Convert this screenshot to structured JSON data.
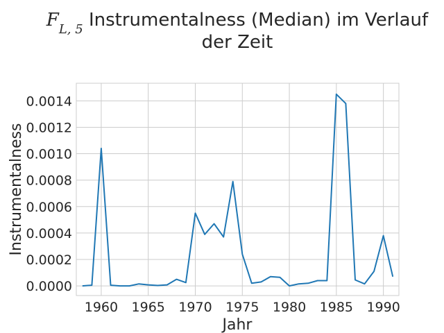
{
  "chart_data": {
    "type": "line",
    "title_symbol": "F",
    "title_subscript": "L, 5",
    "title_rest": " Instrumentalness (Median) im Verlauf",
    "title_line2": "der Zeit",
    "xlabel": "Jahr",
    "ylabel": "Instrumentalness",
    "xlim": [
      1957.35,
      1991.65
    ],
    "ylim": [
      -7.3e-05,
      0.001533
    ],
    "xticks": [
      1960,
      1965,
      1970,
      1975,
      1980,
      1985,
      1990
    ],
    "yticks": [
      0.0,
      0.0002,
      0.0004,
      0.0006,
      0.0008,
      0.001,
      0.0012,
      0.0014
    ],
    "ytick_labels": [
      "0.0000",
      "0.0002",
      "0.0004",
      "0.0006",
      "0.0008",
      "0.0010",
      "0.0012",
      "0.0014"
    ],
    "grid": true,
    "line_color": "#1f77b4",
    "x": [
      1958,
      1959,
      1960,
      1961,
      1962,
      1963,
      1964,
      1965,
      1966,
      1967,
      1968,
      1969,
      1970,
      1971,
      1972,
      1973,
      1974,
      1975,
      1976,
      1977,
      1978,
      1979,
      1980,
      1981,
      1982,
      1983,
      1984,
      1985,
      1986,
      1987,
      1988,
      1989,
      1990,
      1991
    ],
    "y": [
      0.0,
      5e-06,
      0.00104,
      5e-06,
      0.0,
      0.0,
      1.5e-05,
      8e-06,
      3e-06,
      8e-06,
      5e-05,
      2.5e-05,
      0.00055,
      0.00039,
      0.00047,
      0.00037,
      0.00079,
      0.00024,
      2e-05,
      3e-05,
      7e-05,
      6.5e-05,
      0.0,
      1.5e-05,
      2e-05,
      4e-05,
      4e-05,
      0.00145,
      0.00138,
      4.5e-05,
      1.5e-05,
      0.00011,
      0.00038,
      7e-05
    ]
  }
}
